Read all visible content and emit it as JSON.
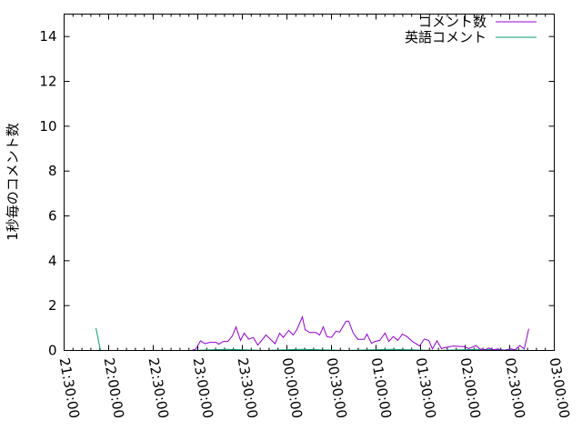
{
  "chart_data": {
    "type": "line",
    "title": "",
    "xlabel": "",
    "ylabel": "1秒毎のコメント数",
    "xlim": [
      "21:30:00",
      "27:00:00"
    ],
    "ylim": [
      0,
      15
    ],
    "x_ticks": [
      "21:30:00",
      "22:00:00",
      "22:30:00",
      "23:00:00",
      "23:30:00",
      "00:00:00",
      "00:30:00",
      "01:00:00",
      "01:30:00",
      "02:00:00",
      "02:30:00",
      "03:00:00"
    ],
    "y_ticks": [
      "0",
      "2",
      "4",
      "6",
      "8",
      "10",
      "12",
      "14"
    ],
    "grid": false,
    "legend": "top-right",
    "colors": {
      "comments": "#9400d3",
      "english": "#009e73"
    },
    "series": [
      {
        "name": "コメント数",
        "x": [
          "22:55:42",
          "22:58:47",
          "23:01:50",
          "23:04:54",
          "23:07:58",
          "23:12:14",
          "23:14:05",
          "23:17:08",
          "23:20:12",
          "23:23:15",
          "23:25:42",
          "23:28:46",
          "23:31:13",
          "23:34:16",
          "23:37:20",
          "23:40:24",
          "23:45:55",
          "23:52:02",
          "23:55:06",
          "23:57:33",
          "24:01:13",
          "24:04:17",
          "24:06:44",
          "24:10:24",
          "24:12:14",
          "24:15:18",
          "24:19:35",
          "24:22:02",
          "24:24:29",
          "24:26:56",
          "24:30:00",
          "24:33:04",
          "24:35:31",
          "24:39:48",
          "24:41:38",
          "24:44:41",
          "24:47:45",
          "24:52:02",
          "24:53:52",
          "24:56:56",
          "24:59:23",
          "25:02:27",
          "25:06:07",
          "25:08:34",
          "25:11:38",
          "25:14:41",
          "25:17:45",
          "25:20:49",
          "25:24:29",
          "25:29:23",
          "25:32:27",
          "25:35:31",
          "25:37:58",
          "25:41:01",
          "25:44:05",
          "25:45:55",
          "25:52:02",
          "25:59:23",
          "26:02:27",
          "26:07:21",
          "26:09:48",
          "26:13:28",
          "26:15:55",
          "26:18:58",
          "26:22:02",
          "26:25:42",
          "26:30:37",
          "26:33:40",
          "26:36:44",
          "26:39:47",
          "26:42:51"
        ],
        "y": [
          0,
          0.07,
          0.43,
          0.3,
          0.36,
          0.36,
          0.28,
          0.4,
          0.4,
          0.65,
          1.05,
          0.45,
          0.77,
          0.5,
          0.58,
          0.24,
          0.69,
          0.3,
          0.77,
          0.58,
          0.89,
          0.69,
          0.93,
          1.5,
          0.93,
          0.8,
          0.8,
          0.69,
          1.05,
          0.62,
          0.58,
          0.86,
          0.82,
          1.3,
          1.3,
          0.77,
          0.5,
          0.5,
          0.73,
          0.32,
          0.4,
          0.45,
          0.77,
          0.4,
          0.62,
          0.45,
          0.73,
          0.62,
          0.4,
          0.2,
          0.51,
          0.45,
          0.07,
          0.43,
          0.08,
          0.12,
          0.2,
          0.17,
          0.08,
          0.22,
          0.07,
          0.03,
          0.11,
          0.03,
          0.07,
          0,
          0.07,
          0.03,
          0.22,
          0.07,
          0.97
        ]
      },
      {
        "name": "英語コメント",
        "x": [
          "21:51:26",
          "21:54:29",
          "22:55:42",
          "23:20:00",
          "23:45:00",
          "24:10:00",
          "24:40:00",
          "25:10:00",
          "25:40:00",
          "26:10:00",
          "26:42:51"
        ],
        "y": [
          1,
          0,
          0,
          0.05,
          0,
          0.05,
          0,
          0.05,
          0,
          0.05,
          0
        ]
      }
    ]
  }
}
